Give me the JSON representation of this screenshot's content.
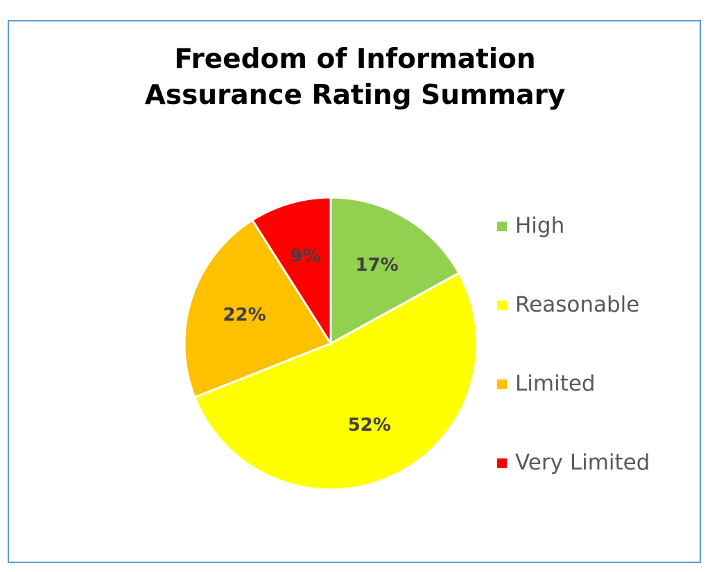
{
  "chart_data": {
    "type": "pie",
    "title_lines": [
      "Freedom of Information",
      "Assurance Rating Summary"
    ],
    "categories": [
      "High",
      "Reasonable",
      "Limited",
      "Very Limited"
    ],
    "values": [
      17,
      52,
      22,
      9
    ],
    "value_labels": [
      "17%",
      "52%",
      "22%",
      "9%"
    ],
    "colors": [
      "#92d050",
      "#ffff00",
      "#ffc000",
      "#ff0000"
    ],
    "legend_position": "right"
  }
}
